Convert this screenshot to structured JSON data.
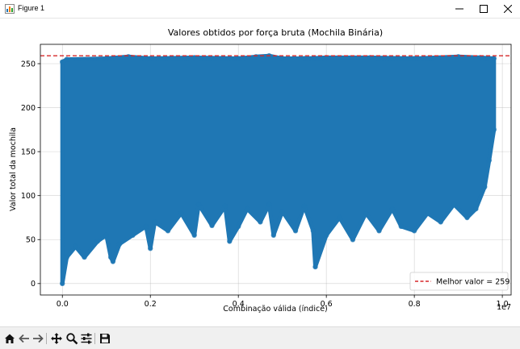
{
  "window": {
    "title": "Figure 1",
    "icons": {
      "app": "matplotlib-figure-icon",
      "minimize": "minimize-icon",
      "maximize": "maximize-icon",
      "close": "close-icon"
    }
  },
  "toolbar": {
    "buttons": [
      {
        "name": "home-button",
        "icon": "home-icon"
      },
      {
        "name": "back-button",
        "icon": "arrow-left-icon"
      },
      {
        "name": "forward-button",
        "icon": "arrow-right-icon"
      },
      {
        "name": "pan-button",
        "icon": "move-arrows-icon"
      },
      {
        "name": "zoom-button",
        "icon": "magnifier-icon"
      },
      {
        "name": "configure-subplots-button",
        "icon": "sliders-icon"
      },
      {
        "name": "save-button",
        "icon": "floppy-disk-icon"
      }
    ]
  },
  "colors": {
    "series": "#1f77b4",
    "best_line": "#d62728",
    "grid": "#b0b0b0",
    "toolbar_bg": "#f0f0f0"
  },
  "chart_data": {
    "type": "scatter",
    "title": "Valores obtidos por força bruta (Mochila Binária)",
    "xlabel": "Combinação válida (índice)",
    "ylabel": "Valor total da mochila",
    "x_offset_label": "1e7",
    "xlim": [
      -0.05,
      1.02
    ],
    "ylim": [
      -13,
      272
    ],
    "x_ticks": [
      0.0,
      0.2,
      0.4,
      0.6,
      0.8,
      1.0
    ],
    "x_tick_labels": [
      "0.0",
      "0.2",
      "0.4",
      "0.6",
      "0.8",
      "1.0"
    ],
    "y_ticks": [
      0,
      50,
      100,
      150,
      200,
      250
    ],
    "y_tick_labels": [
      "0",
      "50",
      "100",
      "150",
      "200",
      "250"
    ],
    "grid": true,
    "legend_position": "lower right",
    "series": [
      {
        "name": "",
        "style": "line-with-markers",
        "x_range": [
          0.0,
          0.981
        ],
        "upper_envelope": [
          [
            0.0,
            252
          ],
          [
            0.01,
            255
          ],
          [
            0.1,
            256
          ],
          [
            0.15,
            258
          ],
          [
            0.2,
            256
          ],
          [
            0.3,
            257
          ],
          [
            0.4,
            256
          ],
          [
            0.44,
            258
          ],
          [
            0.47,
            259
          ],
          [
            0.5,
            256
          ],
          [
            0.55,
            256
          ],
          [
            0.6,
            257
          ],
          [
            0.7,
            257
          ],
          [
            0.8,
            256
          ],
          [
            0.9,
            258
          ],
          [
            0.95,
            257
          ],
          [
            0.981,
            256
          ]
        ],
        "lower_envelope": [
          [
            0.0,
            0
          ],
          [
            0.01,
            30
          ],
          [
            0.03,
            42
          ],
          [
            0.05,
            30
          ],
          [
            0.08,
            48
          ],
          [
            0.1,
            55
          ],
          [
            0.11,
            30
          ],
          [
            0.115,
            25
          ],
          [
            0.13,
            45
          ],
          [
            0.16,
            55
          ],
          [
            0.19,
            65
          ],
          [
            0.2,
            40
          ],
          [
            0.21,
            70
          ],
          [
            0.24,
            60
          ],
          [
            0.27,
            80
          ],
          [
            0.3,
            55
          ],
          [
            0.31,
            90
          ],
          [
            0.34,
            66
          ],
          [
            0.37,
            88
          ],
          [
            0.38,
            48
          ],
          [
            0.4,
            65
          ],
          [
            0.42,
            85
          ],
          [
            0.45,
            70
          ],
          [
            0.47,
            90
          ],
          [
            0.48,
            55
          ],
          [
            0.5,
            82
          ],
          [
            0.53,
            60
          ],
          [
            0.55,
            88
          ],
          [
            0.57,
            60
          ],
          [
            0.575,
            19
          ],
          [
            0.6,
            55
          ],
          [
            0.63,
            75
          ],
          [
            0.66,
            50
          ],
          [
            0.69,
            80
          ],
          [
            0.72,
            60
          ],
          [
            0.75,
            85
          ],
          [
            0.77,
            65
          ],
          [
            0.8,
            60
          ],
          [
            0.83,
            80
          ],
          [
            0.86,
            70
          ],
          [
            0.89,
            90
          ],
          [
            0.92,
            75
          ],
          [
            0.94,
            85
          ],
          [
            0.96,
            110
          ],
          [
            0.97,
            140
          ],
          [
            0.981,
            175
          ]
        ]
      }
    ],
    "reference_line": {
      "y": 259,
      "style": "dashed",
      "label": "Melhor valor = 259"
    }
  }
}
